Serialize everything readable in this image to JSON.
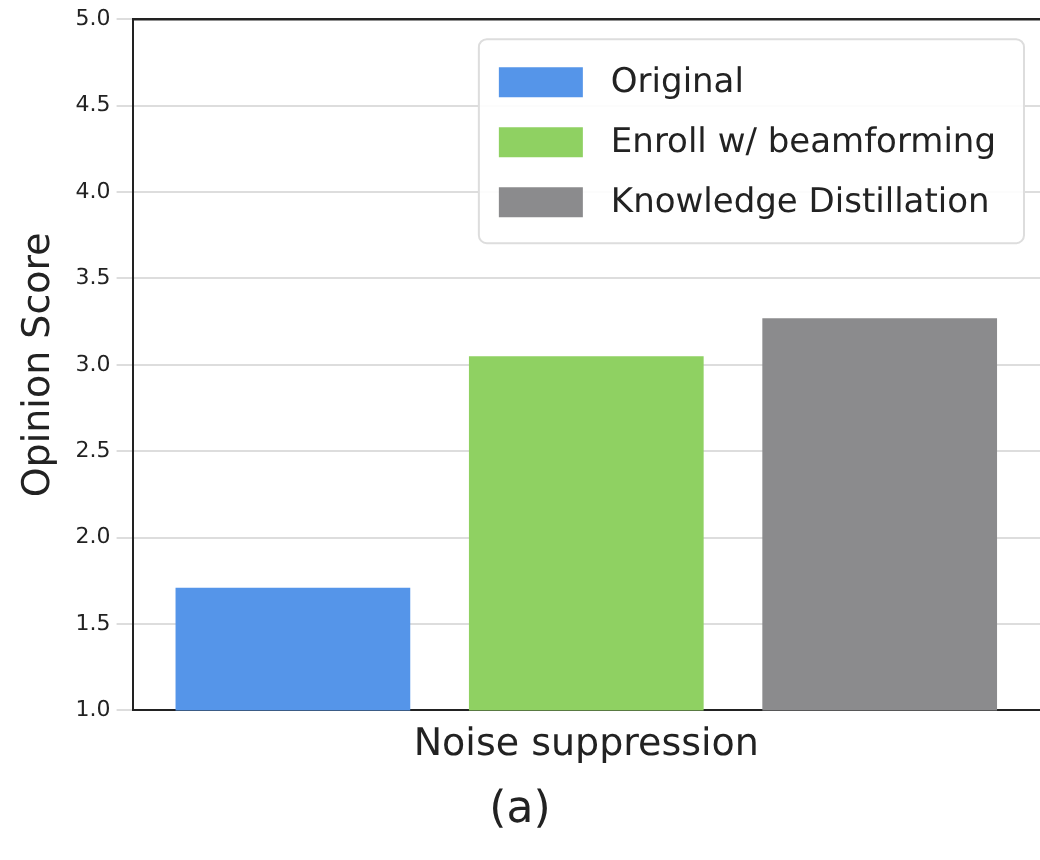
{
  "chart_data": {
    "type": "bar",
    "categories": [
      "Noise suppression"
    ],
    "ylabel": "Opinion Score",
    "series": [
      {
        "name": "Original",
        "color": "#5595e9",
        "values": [
          1.71
        ]
      },
      {
        "name": "Enroll w/ beamforming",
        "color": "#8fd162",
        "values": [
          3.05
        ]
      },
      {
        "name": "Knowledge Distillation",
        "color": "#8b8b8d",
        "values": [
          3.27
        ]
      }
    ],
    "ylim": [
      1.0,
      5.0
    ],
    "yticks": [
      {
        "value": 1,
        "label": "1.0"
      },
      {
        "value": 1.5,
        "label": "1.5"
      },
      {
        "value": 2,
        "label": "2.0"
      },
      {
        "value": 2.5,
        "label": "2.5"
      },
      {
        "value": 3,
        "label": "3.0"
      },
      {
        "value": 3.5,
        "label": "3.5"
      },
      {
        "value": 4,
        "label": "4.0"
      },
      {
        "value": 4.5,
        "label": "4.5"
      },
      {
        "value": 5,
        "label": "5.0"
      }
    ],
    "grid": "y",
    "legend": "top right",
    "annotations": [
      "(a)"
    ]
  }
}
